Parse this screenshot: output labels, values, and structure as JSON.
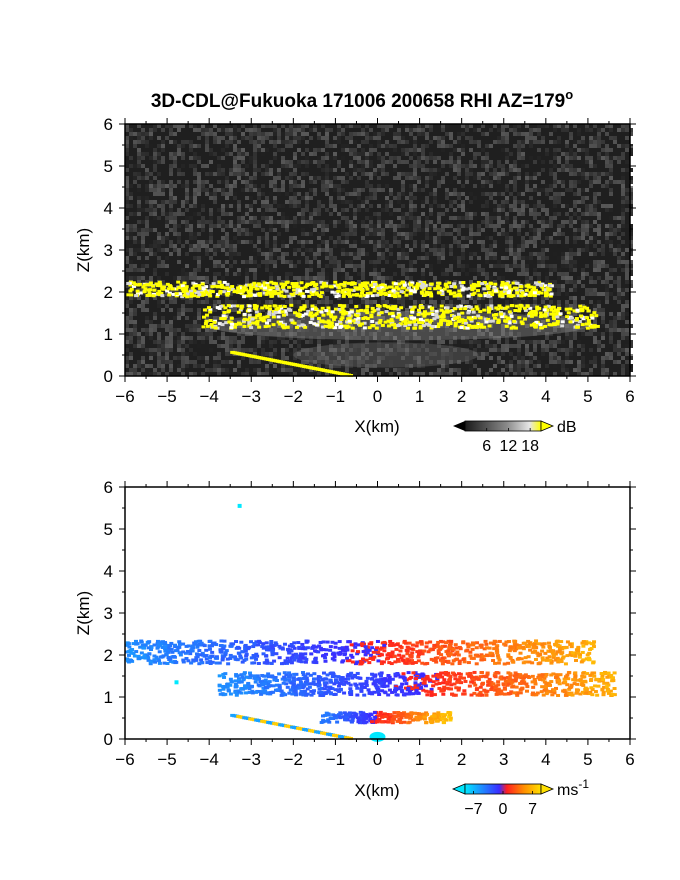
{
  "title": "3D-CDL@Fukuoka 171006 200658 RHI AZ=179",
  "title_degree_mark": "o",
  "chart_data": [
    {
      "type": "heatmap",
      "field": "reflectivity",
      "xlabel": "X(km)",
      "ylabel": "Z(km)",
      "xlim": [
        -6,
        6
      ],
      "ylim": [
        0,
        6
      ],
      "xticks": [
        -6,
        -5,
        -4,
        -3,
        -2,
        -1,
        0,
        1,
        2,
        3,
        4,
        5,
        6
      ],
      "yticks": [
        0,
        1,
        2,
        3,
        4,
        5,
        6
      ],
      "colorbar": {
        "unit": "dB",
        "ticks": [
          6,
          12,
          18
        ],
        "range": [
          0,
          21
        ]
      },
      "layers": [
        {
          "feature": "upper-layer",
          "x_range": [
            -6.0,
            4.1
          ],
          "z_range": [
            1.85,
            2.2
          ]
        },
        {
          "feature": "lower-layer",
          "x_range": [
            -4.2,
            5.2
          ],
          "z_range": [
            1.1,
            1.65
          ]
        },
        {
          "feature": "descending-streak",
          "x_range": [
            -3.5,
            -0.7
          ],
          "z_range": [
            0.0,
            0.55
          ]
        }
      ]
    },
    {
      "type": "heatmap",
      "field": "doppler-velocity",
      "xlabel": "X(km)",
      "ylabel": "Z(km)",
      "xlim": [
        -6,
        6
      ],
      "ylim": [
        0,
        6
      ],
      "xticks": [
        -6,
        -5,
        -4,
        -3,
        -2,
        -1,
        0,
        1,
        2,
        3,
        4,
        5,
        6
      ],
      "yticks": [
        0,
        1,
        2,
        3,
        4,
        5,
        6
      ],
      "colorbar": {
        "unit": "ms",
        "unit_superscript": "-1",
        "ticks": [
          "−7",
          "0",
          "7"
        ],
        "range": [
          -9,
          9
        ]
      },
      "layers": [
        {
          "feature": "upper-layer",
          "x_range": [
            -6.0,
            5.1
          ],
          "z_range": [
            1.75,
            2.3
          ],
          "velocity_range": [
            -6,
            6
          ]
        },
        {
          "feature": "lower-layer",
          "x_range": [
            -3.8,
            5.6
          ],
          "z_range": [
            1.0,
            1.55
          ],
          "velocity_range": [
            -6,
            6
          ]
        },
        {
          "feature": "low-echo",
          "x_range": [
            -1.4,
            1.7
          ],
          "z_range": [
            0.35,
            0.6
          ],
          "velocity_range": [
            -5,
            7
          ]
        },
        {
          "feature": "descending-streak",
          "x_range": [
            -3.5,
            -0.7
          ],
          "z_range": [
            0.0,
            0.55
          ],
          "velocity_range": [
            -8,
            8
          ]
        }
      ],
      "isolated_points": [
        {
          "x": -3.3,
          "z": 5.55
        },
        {
          "x": -4.8,
          "z": 1.35
        }
      ]
    }
  ]
}
